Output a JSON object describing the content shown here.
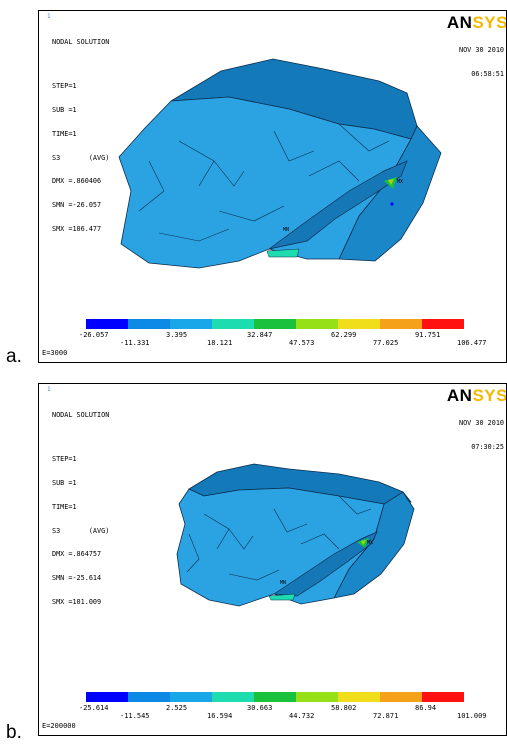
{
  "legend_colors": [
    "#0000ff",
    "#0d8ae6",
    "#18a7e8",
    "#1ddcb0",
    "#19c13c",
    "#95e017",
    "#f0de1a",
    "#f5a11a",
    "#ff1111"
  ],
  "panels": [
    {
      "letter": "a.",
      "corner": "1",
      "title": "NODAL SOLUTION",
      "step": "STEP=1",
      "sub": "SUB =1",
      "time": "TIME=1",
      "result": "S3       (AVG)",
      "dmx": "DMX =.860406",
      "smn": "SMN =-26.057",
      "smx": "SMX =106.477",
      "logo_an": "AN",
      "logo_sys": "SYS",
      "date": "NOV 30 2010",
      "time_of_day": "06:58:51",
      "legend_upper": [
        "-26.057",
        "3.395",
        "32.847",
        "62.299",
        "91.751"
      ],
      "legend_lower": [
        "-11.331",
        "18.121",
        "47.573",
        "77.025",
        "106.477"
      ],
      "e_value": "E=3000",
      "mx_label": "MX",
      "mn_label": "MN"
    },
    {
      "letter": "b.",
      "corner": "1",
      "title": "NODAL SOLUTION",
      "step": "STEP=1",
      "sub": "SUB =1",
      "time": "TIME=1",
      "result": "S3       (AVG)",
      "dmx": "DMX =.864757",
      "smn": "SMN =-25.614",
      "smx": "SMX =101.009",
      "logo_an": "AN",
      "logo_sys": "SYS",
      "date": "NOV 30 2010",
      "time_of_day": "07:30:25",
      "legend_upper": [
        "-25.614",
        "2.525",
        "30.663",
        "58.802",
        "86.94"
      ],
      "legend_lower": [
        "-11.545",
        "16.594",
        "44.732",
        "72.871",
        "101.009"
      ],
      "e_value": "E=200000",
      "mx_label": "MX",
      "mn_label": "MN"
    }
  ]
}
